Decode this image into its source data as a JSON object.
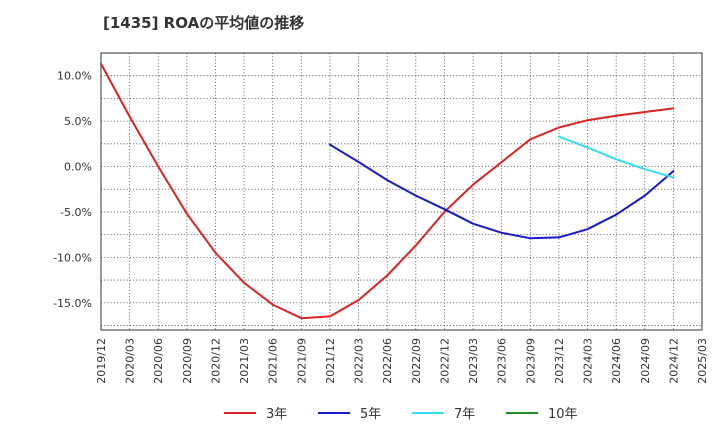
{
  "chart_data": {
    "type": "line",
    "title": "[1435]  ROAの平均値の推移",
    "xlabel": "",
    "ylabel": "",
    "ylim": [
      -18.0,
      12.5
    ],
    "y_ticks": [
      10,
      5,
      0,
      -5,
      -10,
      -15
    ],
    "y_tick_labels": [
      "10.0%",
      "5.0%",
      "0.0%",
      "-5.0%",
      "-10.0%",
      "-15.0%"
    ],
    "x_ticks": [
      "2019/12",
      "2020/03",
      "2020/06",
      "2020/09",
      "2020/12",
      "2021/03",
      "2021/06",
      "2021/09",
      "2021/12",
      "2022/03",
      "2022/06",
      "2022/09",
      "2022/12",
      "2023/03",
      "2023/06",
      "2023/09",
      "2023/12",
      "2024/03",
      "2024/06",
      "2024/09",
      "2024/12",
      "2025/03"
    ],
    "grid": true,
    "series": [
      {
        "name": "3年",
        "color": "#dd2222",
        "x": [
          "2019/12",
          "2020/03",
          "2020/06",
          "2020/09",
          "2020/12",
          "2021/03",
          "2021/06",
          "2021/09",
          "2021/12",
          "2022/03",
          "2022/06",
          "2022/09",
          "2022/12",
          "2023/03",
          "2023/06",
          "2023/09",
          "2023/12",
          "2024/03",
          "2024/06",
          "2024/09",
          "2024/12"
        ],
        "values": [
          11.3,
          5.5,
          0.0,
          -5.2,
          -9.5,
          -12.8,
          -15.2,
          -16.7,
          -16.5,
          -14.7,
          -12.0,
          -8.7,
          -5.0,
          -2.0,
          0.5,
          3.0,
          4.3,
          5.1,
          5.6,
          6.0,
          6.4
        ]
      },
      {
        "name": "5年",
        "color": "#1a1acc",
        "x": [
          "2021/12",
          "2022/03",
          "2022/06",
          "2022/09",
          "2022/12",
          "2023/03",
          "2023/06",
          "2023/09",
          "2023/12",
          "2024/03",
          "2024/06",
          "2024/09",
          "2024/12"
        ],
        "values": [
          2.4,
          0.5,
          -1.5,
          -3.2,
          -4.7,
          -6.3,
          -7.3,
          -7.9,
          -7.8,
          -6.9,
          -5.3,
          -3.2,
          -0.5
        ]
      },
      {
        "name": "7年",
        "color": "#33ddee",
        "x": [
          "2023/12",
          "2024/03",
          "2024/06",
          "2024/09",
          "2024/12"
        ],
        "values": [
          3.3,
          2.1,
          0.8,
          -0.3,
          -1.2
        ]
      },
      {
        "name": "10年",
        "color": "#228822",
        "x": [],
        "values": []
      }
    ],
    "legend": "bottom"
  }
}
